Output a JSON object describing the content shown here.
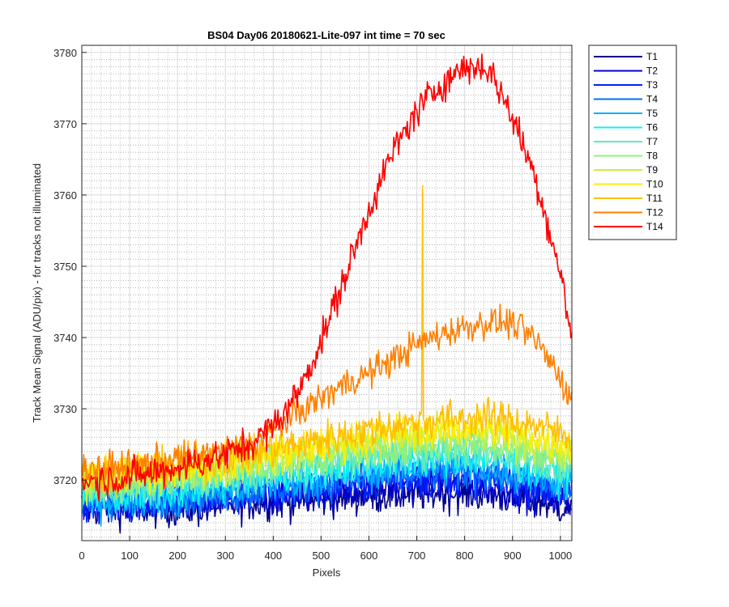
{
  "chart_data": {
    "type": "line",
    "title": "BS04 Day06 20180621-Lite-097 int time = 70 sec",
    "xlabel": "Pixels",
    "ylabel": "Track Mean Signal (ADU/pix) - for tracks not illuminated",
    "xlim": [
      0,
      1024
    ],
    "ylim": [
      3711.5,
      3781
    ],
    "xticks": [
      0,
      100,
      200,
      300,
      400,
      500,
      600,
      700,
      800,
      900,
      1000
    ],
    "xtick_labels": [
      "0",
      "100",
      "200",
      "300",
      "400",
      "500",
      "600",
      "700",
      "800",
      "900",
      "1000"
    ],
    "yticks": [
      3720,
      3730,
      3740,
      3750,
      3760,
      3770,
      3780
    ],
    "ytick_labels": [
      "3720",
      "3730",
      "3740",
      "3750",
      "3760",
      "3770",
      "3780"
    ],
    "grid": "major and minor",
    "legend_position": "outside-right",
    "x": [
      0,
      50,
      100,
      150,
      200,
      250,
      300,
      350,
      400,
      450,
      500,
      550,
      600,
      650,
      700,
      750,
      800,
      850,
      900,
      950,
      1000,
      1024
    ],
    "series": [
      {
        "name": "T1",
        "color": "#00008f",
        "noise": 2.4,
        "values": [
          3716,
          3716,
          3716,
          3716,
          3716,
          3716,
          3716.5,
          3716.8,
          3717,
          3717.2,
          3717.3,
          3717.6,
          3717.8,
          3718,
          3718.2,
          3718.2,
          3718.2,
          3718,
          3717.6,
          3717,
          3716.3,
          3716
        ]
      },
      {
        "name": "T2",
        "color": "#0000cc",
        "noise": 2.4,
        "values": [
          3716.5,
          3716.5,
          3716.5,
          3716.5,
          3716.6,
          3716.8,
          3717,
          3717.4,
          3717.7,
          3718,
          3718.3,
          3718.5,
          3718.8,
          3719,
          3719.2,
          3719.3,
          3719.3,
          3719,
          3718.6,
          3718,
          3717.3,
          3717
        ]
      },
      {
        "name": "T3",
        "color": "#0022ff",
        "noise": 2.4,
        "values": [
          3716.5,
          3716.6,
          3716.8,
          3717,
          3717.1,
          3717.3,
          3717.6,
          3718,
          3718.3,
          3718.6,
          3719,
          3719.3,
          3719.6,
          3719.9,
          3720.1,
          3720.3,
          3720.3,
          3720,
          3719.6,
          3719,
          3718.2,
          3717.8
        ]
      },
      {
        "name": "T4",
        "color": "#0070ff",
        "noise": 2.4,
        "values": [
          3717,
          3717,
          3717.1,
          3717.3,
          3717.5,
          3717.8,
          3718,
          3718.4,
          3718.8,
          3719.2,
          3719.6,
          3720,
          3720.3,
          3720.6,
          3720.9,
          3721,
          3721,
          3720.8,
          3720.3,
          3719.7,
          3719,
          3718.6
        ]
      },
      {
        "name": "T5",
        "color": "#00b0ff",
        "noise": 2.4,
        "values": [
          3717,
          3717.1,
          3717.3,
          3717.6,
          3717.9,
          3718.2,
          3718.5,
          3719,
          3719.4,
          3719.9,
          3720.3,
          3720.8,
          3721.2,
          3721.5,
          3721.8,
          3722,
          3722,
          3721.7,
          3721.2,
          3720.5,
          3719.8,
          3719.4
        ]
      },
      {
        "name": "T6",
        "color": "#10f0f0",
        "noise": 2.4,
        "values": [
          3717.5,
          3717.6,
          3717.8,
          3718.1,
          3718.5,
          3718.9,
          3719.3,
          3719.8,
          3720.3,
          3720.8,
          3721.3,
          3721.8,
          3722.2,
          3722.6,
          3722.9,
          3723.1,
          3723.1,
          3722.9,
          3722.4,
          3721.7,
          3721,
          3720.6
        ]
      },
      {
        "name": "T7",
        "color": "#60e8c0",
        "noise": 2.4,
        "values": [
          3718.5,
          3718.6,
          3718.8,
          3719.1,
          3719.5,
          3719.9,
          3720.3,
          3720.8,
          3721.3,
          3721.8,
          3722.3,
          3722.8,
          3723.2,
          3723.6,
          3723.9,
          3724.1,
          3724.2,
          3724,
          3723.5,
          3722.8,
          3722,
          3721.6
        ]
      },
      {
        "name": "T8",
        "color": "#90f080",
        "noise": 2.4,
        "values": [
          3719,
          3719.1,
          3719.4,
          3719.7,
          3720.1,
          3720.5,
          3721,
          3721.5,
          3722,
          3722.6,
          3723.1,
          3723.6,
          3724.1,
          3724.5,
          3724.9,
          3725.1,
          3725.2,
          3725,
          3724.5,
          3723.8,
          3723,
          3722.6
        ]
      },
      {
        "name": "T9",
        "color": "#c8f040",
        "noise": 2.4,
        "values": [
          3720,
          3720.1,
          3720.4,
          3720.7,
          3721.1,
          3721.5,
          3722,
          3722.5,
          3723,
          3723.6,
          3724.2,
          3724.7,
          3725.2,
          3725.6,
          3726,
          3726.2,
          3726.3,
          3726.2,
          3725.7,
          3725,
          3724.1,
          3723.7
        ]
      },
      {
        "name": "T10",
        "color": "#ffee00",
        "noise": 2.4,
        "values": [
          3720.5,
          3720.6,
          3720.9,
          3721.2,
          3721.6,
          3722,
          3722.5,
          3723.1,
          3723.7,
          3724.3,
          3724.9,
          3725.5,
          3726,
          3726.5,
          3726.9,
          3727.2,
          3727.3,
          3727.2,
          3726.8,
          3726.1,
          3725.2,
          3724.8
        ]
      },
      {
        "name": "T11",
        "color": "#ffbf00",
        "noise": 2.4,
        "values": [
          3721,
          3721.1,
          3721.4,
          3721.7,
          3722.1,
          3722.6,
          3723.1,
          3723.7,
          3724.4,
          3725,
          3725.7,
          3726.4,
          3727,
          3727.6,
          3728.1,
          3728.5,
          3728.7,
          3728.7,
          3728.4,
          3727.7,
          3726.6,
          3726
        ]
      },
      {
        "name": "T12",
        "color": "#ff8000",
        "noise": 2.0,
        "values": [
          3721.5,
          3721.7,
          3722,
          3722.5,
          3723,
          3723.6,
          3724.2,
          3725,
          3727,
          3729.5,
          3731.5,
          3733.5,
          3735,
          3737,
          3739,
          3740.5,
          3741.5,
          3742.2,
          3742,
          3739.5,
          3734.5,
          3731
        ]
      },
      {
        "name": "T14",
        "color": "#ff0000",
        "noise": 2.2,
        "values": [
          3719.8,
          3720.1,
          3720.4,
          3721,
          3721.8,
          3722.6,
          3723.6,
          3725,
          3727.5,
          3732,
          3739.5,
          3748.5,
          3758,
          3766,
          3771.8,
          3775.5,
          3778,
          3777.8,
          3771,
          3762,
          3749,
          3740
        ]
      }
    ],
    "annotations": [
      {
        "series": "T11",
        "type": "spike",
        "x": 712,
        "y_peak": 3761.3
      }
    ]
  }
}
